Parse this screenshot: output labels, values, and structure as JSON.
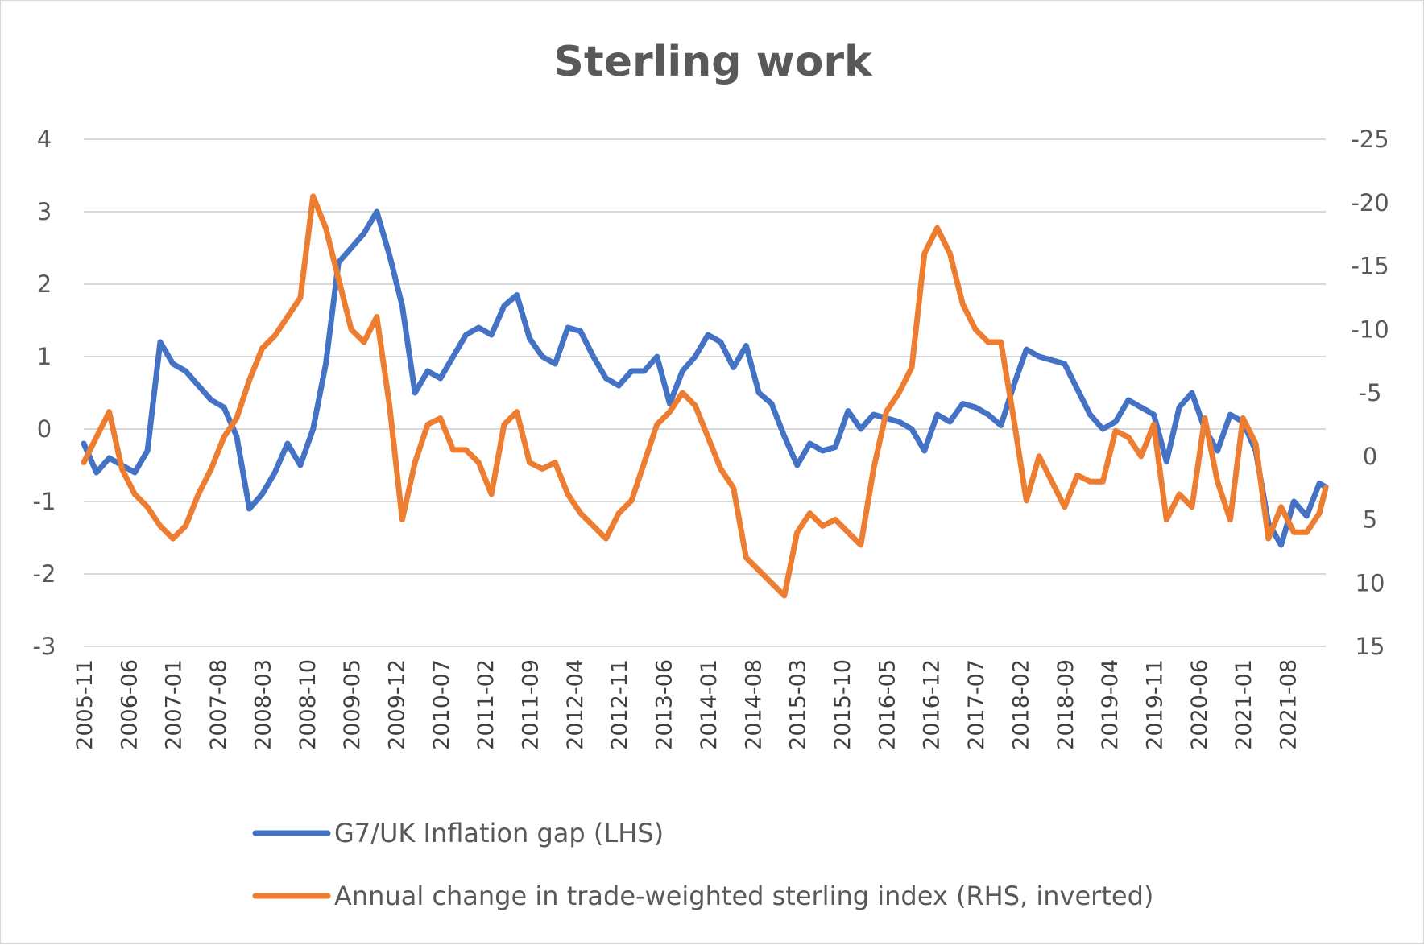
{
  "chart_data": {
    "type": "line",
    "title": "Sterling work",
    "y_left": {
      "ticks": [
        4,
        3,
        2,
        1,
        0,
        -1,
        -2,
        -3
      ],
      "range": [
        -3,
        4
      ]
    },
    "y_right": {
      "ticks": [
        -25,
        -20,
        -15,
        -10,
        -5,
        0,
        5,
        10,
        15
      ],
      "range": [
        -25,
        15
      ],
      "inverted": true
    },
    "x_tick_labels": [
      "2005-11",
      "2006-06",
      "2007-01",
      "2007-08",
      "2008-03",
      "2008-10",
      "2009-05",
      "2009-12",
      "2010-07",
      "2011-02",
      "2011-09",
      "2012-04",
      "2012-11",
      "2013-06",
      "2014-01",
      "2014-08",
      "2015-03",
      "2015-10",
      "2016-05",
      "2016-12",
      "2017-07",
      "2018-02",
      "2018-09",
      "2019-04",
      "2019-11",
      "2020-06",
      "2021-01",
      "2021-08"
    ],
    "grid": true,
    "legend_position": "bottom",
    "series": [
      {
        "name": "G7/UK Inflation gap (LHS)",
        "axis": "left",
        "color": "#4472c4",
        "x": [
          "2005-11",
          "2006-01",
          "2006-03",
          "2006-05",
          "2006-07",
          "2006-09",
          "2006-11",
          "2007-01",
          "2007-03",
          "2007-05",
          "2007-07",
          "2007-09",
          "2007-11",
          "2008-01",
          "2008-03",
          "2008-05",
          "2008-07",
          "2008-09",
          "2008-11",
          "2009-01",
          "2009-03",
          "2009-05",
          "2009-07",
          "2009-09",
          "2009-11",
          "2010-01",
          "2010-03",
          "2010-05",
          "2010-07",
          "2010-09",
          "2010-11",
          "2011-01",
          "2011-03",
          "2011-05",
          "2011-07",
          "2011-09",
          "2011-11",
          "2012-01",
          "2012-03",
          "2012-05",
          "2012-07",
          "2012-09",
          "2012-11",
          "2013-01",
          "2013-03",
          "2013-05",
          "2013-07",
          "2013-09",
          "2013-11",
          "2014-01",
          "2014-03",
          "2014-05",
          "2014-07",
          "2014-09",
          "2014-11",
          "2015-01",
          "2015-03",
          "2015-05",
          "2015-07",
          "2015-09",
          "2015-11",
          "2016-01",
          "2016-03",
          "2016-05",
          "2016-07",
          "2016-09",
          "2016-11",
          "2017-01",
          "2017-03",
          "2017-05",
          "2017-07",
          "2017-09",
          "2017-11",
          "2018-01",
          "2018-03",
          "2018-05",
          "2018-07",
          "2018-09",
          "2018-11",
          "2019-01",
          "2019-03",
          "2019-05",
          "2019-07",
          "2019-09",
          "2019-11",
          "2020-01",
          "2020-03",
          "2020-05",
          "2020-07",
          "2020-09",
          "2020-11",
          "2021-01",
          "2021-03",
          "2021-05",
          "2021-07",
          "2021-09",
          "2021-11",
          "2022-01",
          "2022-02"
        ],
        "values": [
          -0.2,
          -0.6,
          -0.4,
          -0.5,
          -0.6,
          -0.3,
          1.2,
          0.9,
          0.8,
          0.6,
          0.4,
          0.3,
          -0.1,
          -1.1,
          -0.9,
          -0.6,
          -0.2,
          -0.5,
          0.0,
          0.9,
          2.3,
          2.5,
          2.7,
          3.0,
          2.4,
          1.7,
          0.5,
          0.8,
          0.7,
          1.0,
          1.3,
          1.4,
          1.3,
          1.7,
          1.85,
          1.25,
          1.0,
          0.9,
          1.4,
          1.35,
          1.0,
          0.7,
          0.6,
          0.8,
          0.8,
          1.0,
          0.35,
          0.8,
          1.0,
          1.3,
          1.2,
          0.85,
          1.15,
          0.5,
          0.35,
          -0.1,
          -0.5,
          -0.2,
          -0.3,
          -0.25,
          0.25,
          0.0,
          0.2,
          0.15,
          0.1,
          0.0,
          -0.3,
          0.2,
          0.1,
          0.35,
          0.3,
          0.2,
          0.05,
          0.6,
          1.1,
          1.0,
          0.95,
          0.9,
          0.55,
          0.2,
          0.0,
          0.1,
          0.4,
          0.3,
          0.2,
          -0.45,
          0.3,
          0.5,
          0.0,
          -0.3,
          0.2,
          0.1,
          -0.3,
          -1.3,
          -1.6,
          -1.0,
          -1.2,
          -0.75,
          -0.8
        ]
      },
      {
        "name": "Annual change in trade-weighted sterling index (RHS, inverted)",
        "axis": "right",
        "color": "#ed7d31",
        "x": [
          "2005-11",
          "2006-01",
          "2006-03",
          "2006-05",
          "2006-07",
          "2006-09",
          "2006-11",
          "2007-01",
          "2007-03",
          "2007-05",
          "2007-07",
          "2007-09",
          "2007-11",
          "2008-01",
          "2008-03",
          "2008-05",
          "2008-07",
          "2008-09",
          "2008-11",
          "2009-01",
          "2009-03",
          "2009-05",
          "2009-07",
          "2009-09",
          "2009-11",
          "2010-01",
          "2010-03",
          "2010-05",
          "2010-07",
          "2010-09",
          "2010-11",
          "2011-01",
          "2011-03",
          "2011-05",
          "2011-07",
          "2011-09",
          "2011-11",
          "2012-01",
          "2012-03",
          "2012-05",
          "2012-07",
          "2012-09",
          "2012-11",
          "2013-01",
          "2013-03",
          "2013-05",
          "2013-07",
          "2013-09",
          "2013-11",
          "2014-01",
          "2014-03",
          "2014-05",
          "2014-07",
          "2014-09",
          "2014-11",
          "2015-01",
          "2015-03",
          "2015-05",
          "2015-07",
          "2015-09",
          "2015-11",
          "2016-01",
          "2016-03",
          "2016-05",
          "2016-07",
          "2016-09",
          "2016-11",
          "2017-01",
          "2017-03",
          "2017-05",
          "2017-07",
          "2017-09",
          "2017-11",
          "2018-01",
          "2018-03",
          "2018-05",
          "2018-07",
          "2018-09",
          "2018-11",
          "2019-01",
          "2019-03",
          "2019-05",
          "2019-07",
          "2019-09",
          "2019-11",
          "2020-01",
          "2020-03",
          "2020-05",
          "2020-07",
          "2020-09",
          "2020-11",
          "2021-01",
          "2021-03",
          "2021-05",
          "2021-07",
          "2021-09",
          "2021-11",
          "2022-01",
          "2022-02"
        ],
        "values": [
          0.5,
          -1.5,
          -3.5,
          1.0,
          3.0,
          4.0,
          5.5,
          6.5,
          5.5,
          3.0,
          1.0,
          -1.5,
          -3.0,
          -6.0,
          -8.5,
          -9.5,
          -11.0,
          -12.5,
          -20.5,
          -18.0,
          -14.0,
          -10.0,
          -9.0,
          -11.0,
          -4.0,
          5.0,
          0.5,
          -2.5,
          -3.0,
          -0.5,
          -0.5,
          0.5,
          3.0,
          -2.5,
          -3.5,
          0.5,
          1.0,
          0.5,
          3.0,
          4.5,
          5.5,
          6.5,
          4.5,
          3.5,
          0.5,
          -2.5,
          -3.5,
          -5.0,
          -4.0,
          -1.5,
          1.0,
          2.5,
          8.0,
          9.0,
          10.0,
          11.0,
          6.0,
          4.5,
          5.5,
          5.0,
          6.0,
          7.0,
          1.0,
          -3.5,
          -5.0,
          -7.0,
          -16.0,
          -18.0,
          -16.0,
          -12.0,
          -10.0,
          -9.0,
          -9.0,
          -3.0,
          3.5,
          0.0,
          2.0,
          4.0,
          1.5,
          2.0,
          2.0,
          -2.0,
          -1.5,
          0.0,
          -2.5,
          5.0,
          3.0,
          4.0,
          -3.0,
          2.0,
          5.0,
          -3.0,
          -1.0,
          6.5,
          4.0,
          6.0,
          6.0,
          4.5,
          2.5
        ]
      }
    ]
  }
}
